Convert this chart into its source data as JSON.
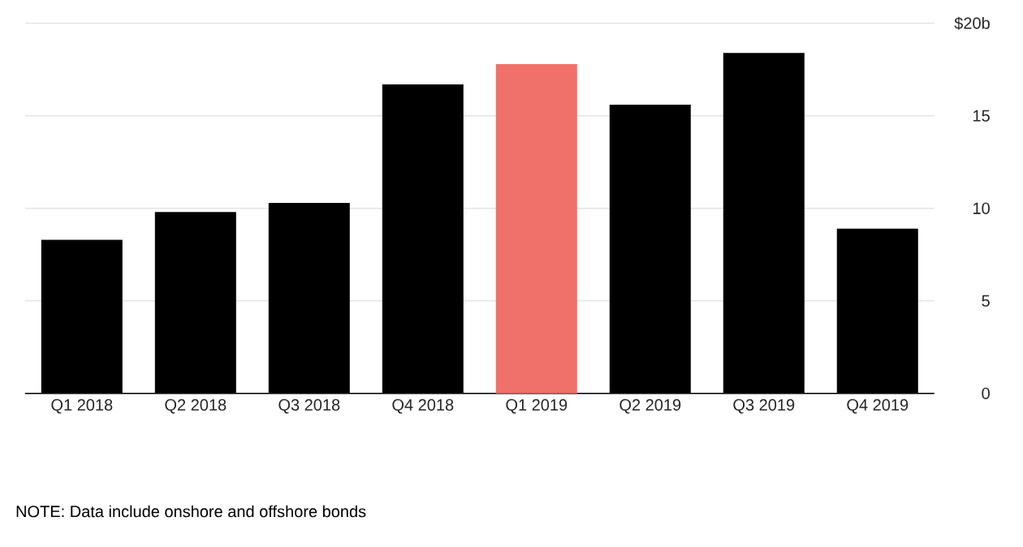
{
  "chart_data": {
    "type": "bar",
    "categories": [
      "Q1 2018",
      "Q2 2018",
      "Q3 2018",
      "Q4 2018",
      "Q1 2019",
      "Q2 2019",
      "Q3 2019",
      "Q4 2019"
    ],
    "values": [
      8.3,
      9.8,
      10.3,
      16.7,
      17.8,
      15.6,
      18.4,
      8.9
    ],
    "colors": [
      "#000000",
      "#000000",
      "#000000",
      "#000000",
      "#f0706a",
      "#000000",
      "#000000",
      "#000000"
    ],
    "ylim": [
      0,
      20
    ],
    "yticks": [
      0,
      5,
      10,
      15,
      {
        "value": 20,
        "label": "$20b"
      }
    ],
    "grid": "y",
    "annotations": [
      "NOTE: Data include onshore and offshore bonds"
    ]
  }
}
